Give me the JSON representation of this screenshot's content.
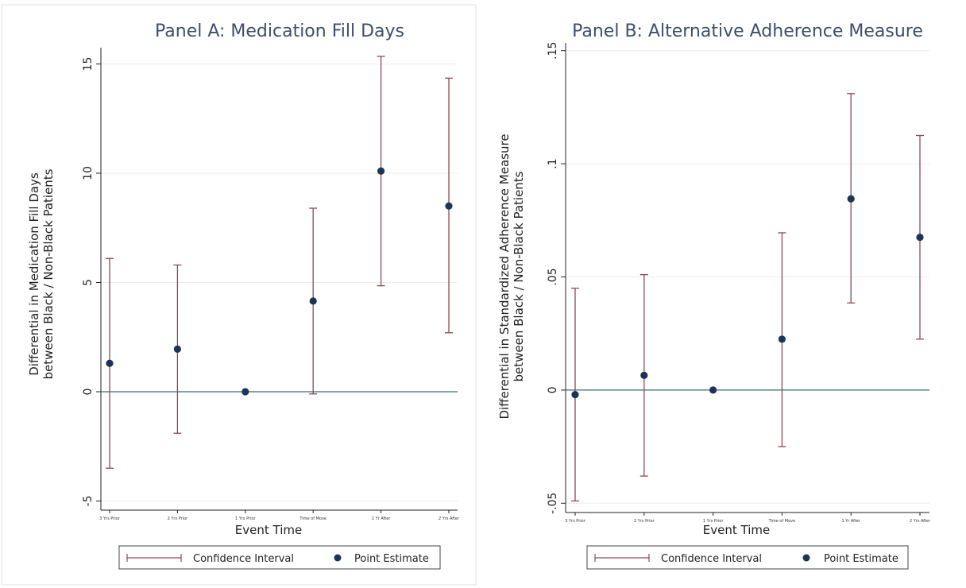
{
  "chart_data": [
    {
      "type": "scatter",
      "title": "Panel A: Medication Fill Days",
      "xlabel": "Event Time",
      "ylabel": [
        "Differential in Medication Fill Days",
        "between Black / Non-Black Patients"
      ],
      "categories": [
        "3 Yrs Prior",
        "2 Yrs Prior",
        "1 Yrs Prior",
        "Time of Move",
        "1 Yr After",
        "2 Yrs After"
      ],
      "yticks": [
        -5,
        0,
        5,
        10,
        15
      ],
      "ytick_labels": [
        "-5",
        "0",
        "5",
        "10",
        "15"
      ],
      "ylim": [
        -5.2,
        15.6
      ],
      "grid": true,
      "reference_line": 0,
      "series": [
        {
          "name": "Point Estimate",
          "values": [
            1.3,
            1.95,
            0,
            4.15,
            10.1,
            8.5
          ]
        },
        {
          "name": "Confidence Interval",
          "lower": [
            -3.5,
            -1.9,
            0,
            -0.1,
            4.85,
            2.7
          ],
          "upper": [
            6.1,
            5.8,
            0,
            8.4,
            15.35,
            14.35
          ]
        }
      ],
      "legend": {
        "position": "bottom",
        "items": [
          "Confidence Interval",
          "Point Estimate"
        ]
      },
      "colors": {
        "ci": "#8b4a55",
        "point": "#1c3557",
        "zero_line": "#3e6a72",
        "grid": "#ececec",
        "title": "#3d4f6e"
      }
    },
    {
      "type": "scatter",
      "title": "Panel B: Alternative Adherence Measure",
      "xlabel": "Event Time",
      "ylabel": [
        "Differential in Standardized Adherence Measure",
        "between Black / Non-Black Patients"
      ],
      "categories": [
        "3 Yrs Prior",
        "2 Yrs Prior",
        "1 Yrs Prior",
        "Time of Move",
        "1 Yr After",
        "2 Yrs After"
      ],
      "yticks": [
        -0.05,
        0,
        0.05,
        0.1,
        0.15
      ],
      "ytick_labels": [
        "-.05",
        "0",
        ".05",
        ".1",
        ".15"
      ],
      "ylim": [
        -0.052,
        0.152
      ],
      "grid": true,
      "reference_line": 0,
      "series": [
        {
          "name": "Point Estimate",
          "values": [
            -0.002,
            0.0065,
            0,
            0.0225,
            0.0845,
            0.0675
          ]
        },
        {
          "name": "Confidence Interval",
          "lower": [
            -0.049,
            -0.038,
            0,
            -0.025,
            0.0385,
            0.0225
          ],
          "upper": [
            0.045,
            0.051,
            0,
            0.0695,
            0.131,
            0.1125
          ]
        }
      ],
      "legend": {
        "position": "bottom",
        "items": [
          "Confidence Interval",
          "Point Estimate"
        ]
      },
      "colors": {
        "ci": "#8b4a55",
        "point": "#1c3557",
        "zero_line": "#3e6a72",
        "grid": "#ececec",
        "title": "#3d4f6e"
      }
    }
  ]
}
